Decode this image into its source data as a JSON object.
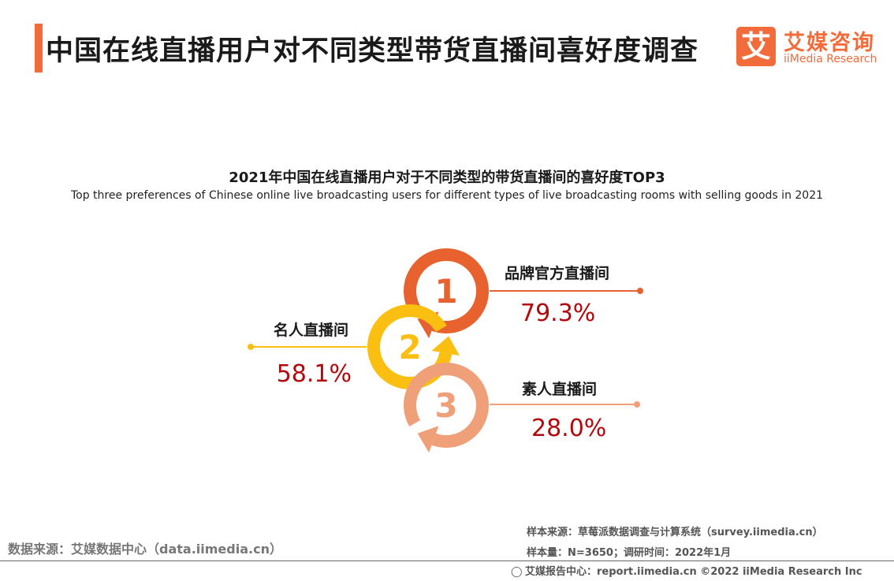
{
  "header": {
    "title": "中国在线直播用户对不同类型带货直播间喜好度调查",
    "accent_color": "#f26b3a"
  },
  "logo": {
    "mark": "艾",
    "cn": "艾媒咨询",
    "en": "iiMedia Research"
  },
  "chart_data": {
    "type": "ranked-percent",
    "title": "2021年中国在线直播用户对于不同类型的带货直播间的喜好度TOP3",
    "subtitle": "Top three preferences of Chinese online live broadcasting users for different types of live broadcasting rooms with selling goods in 2021",
    "items": [
      {
        "rank": "1",
        "label": "品牌官方直播间",
        "value": 79.3,
        "value_text": "79.3%",
        "color": "#e8622f"
      },
      {
        "rank": "2",
        "label": "名人直播间",
        "value": 58.1,
        "value_text": "58.1%",
        "color": "#fbbf12"
      },
      {
        "rank": "3",
        "label": "素人直播间",
        "value": 28.0,
        "value_text": "28.0%",
        "color": "#f0a079"
      }
    ],
    "value_color": "#b3080c"
  },
  "footer": {
    "source": "数据来源：艾媒数据中心（data.iimedia.cn）",
    "sample_source": "样本来源：草莓派数据调查与计算系统（survey.iimedia.cn）",
    "sample_size": "样本量：N=3650；调研时间：2022年1月",
    "report_center": "艾媒报告中心：report.iimedia.cn  ©2022  iiMedia Research  Inc"
  }
}
